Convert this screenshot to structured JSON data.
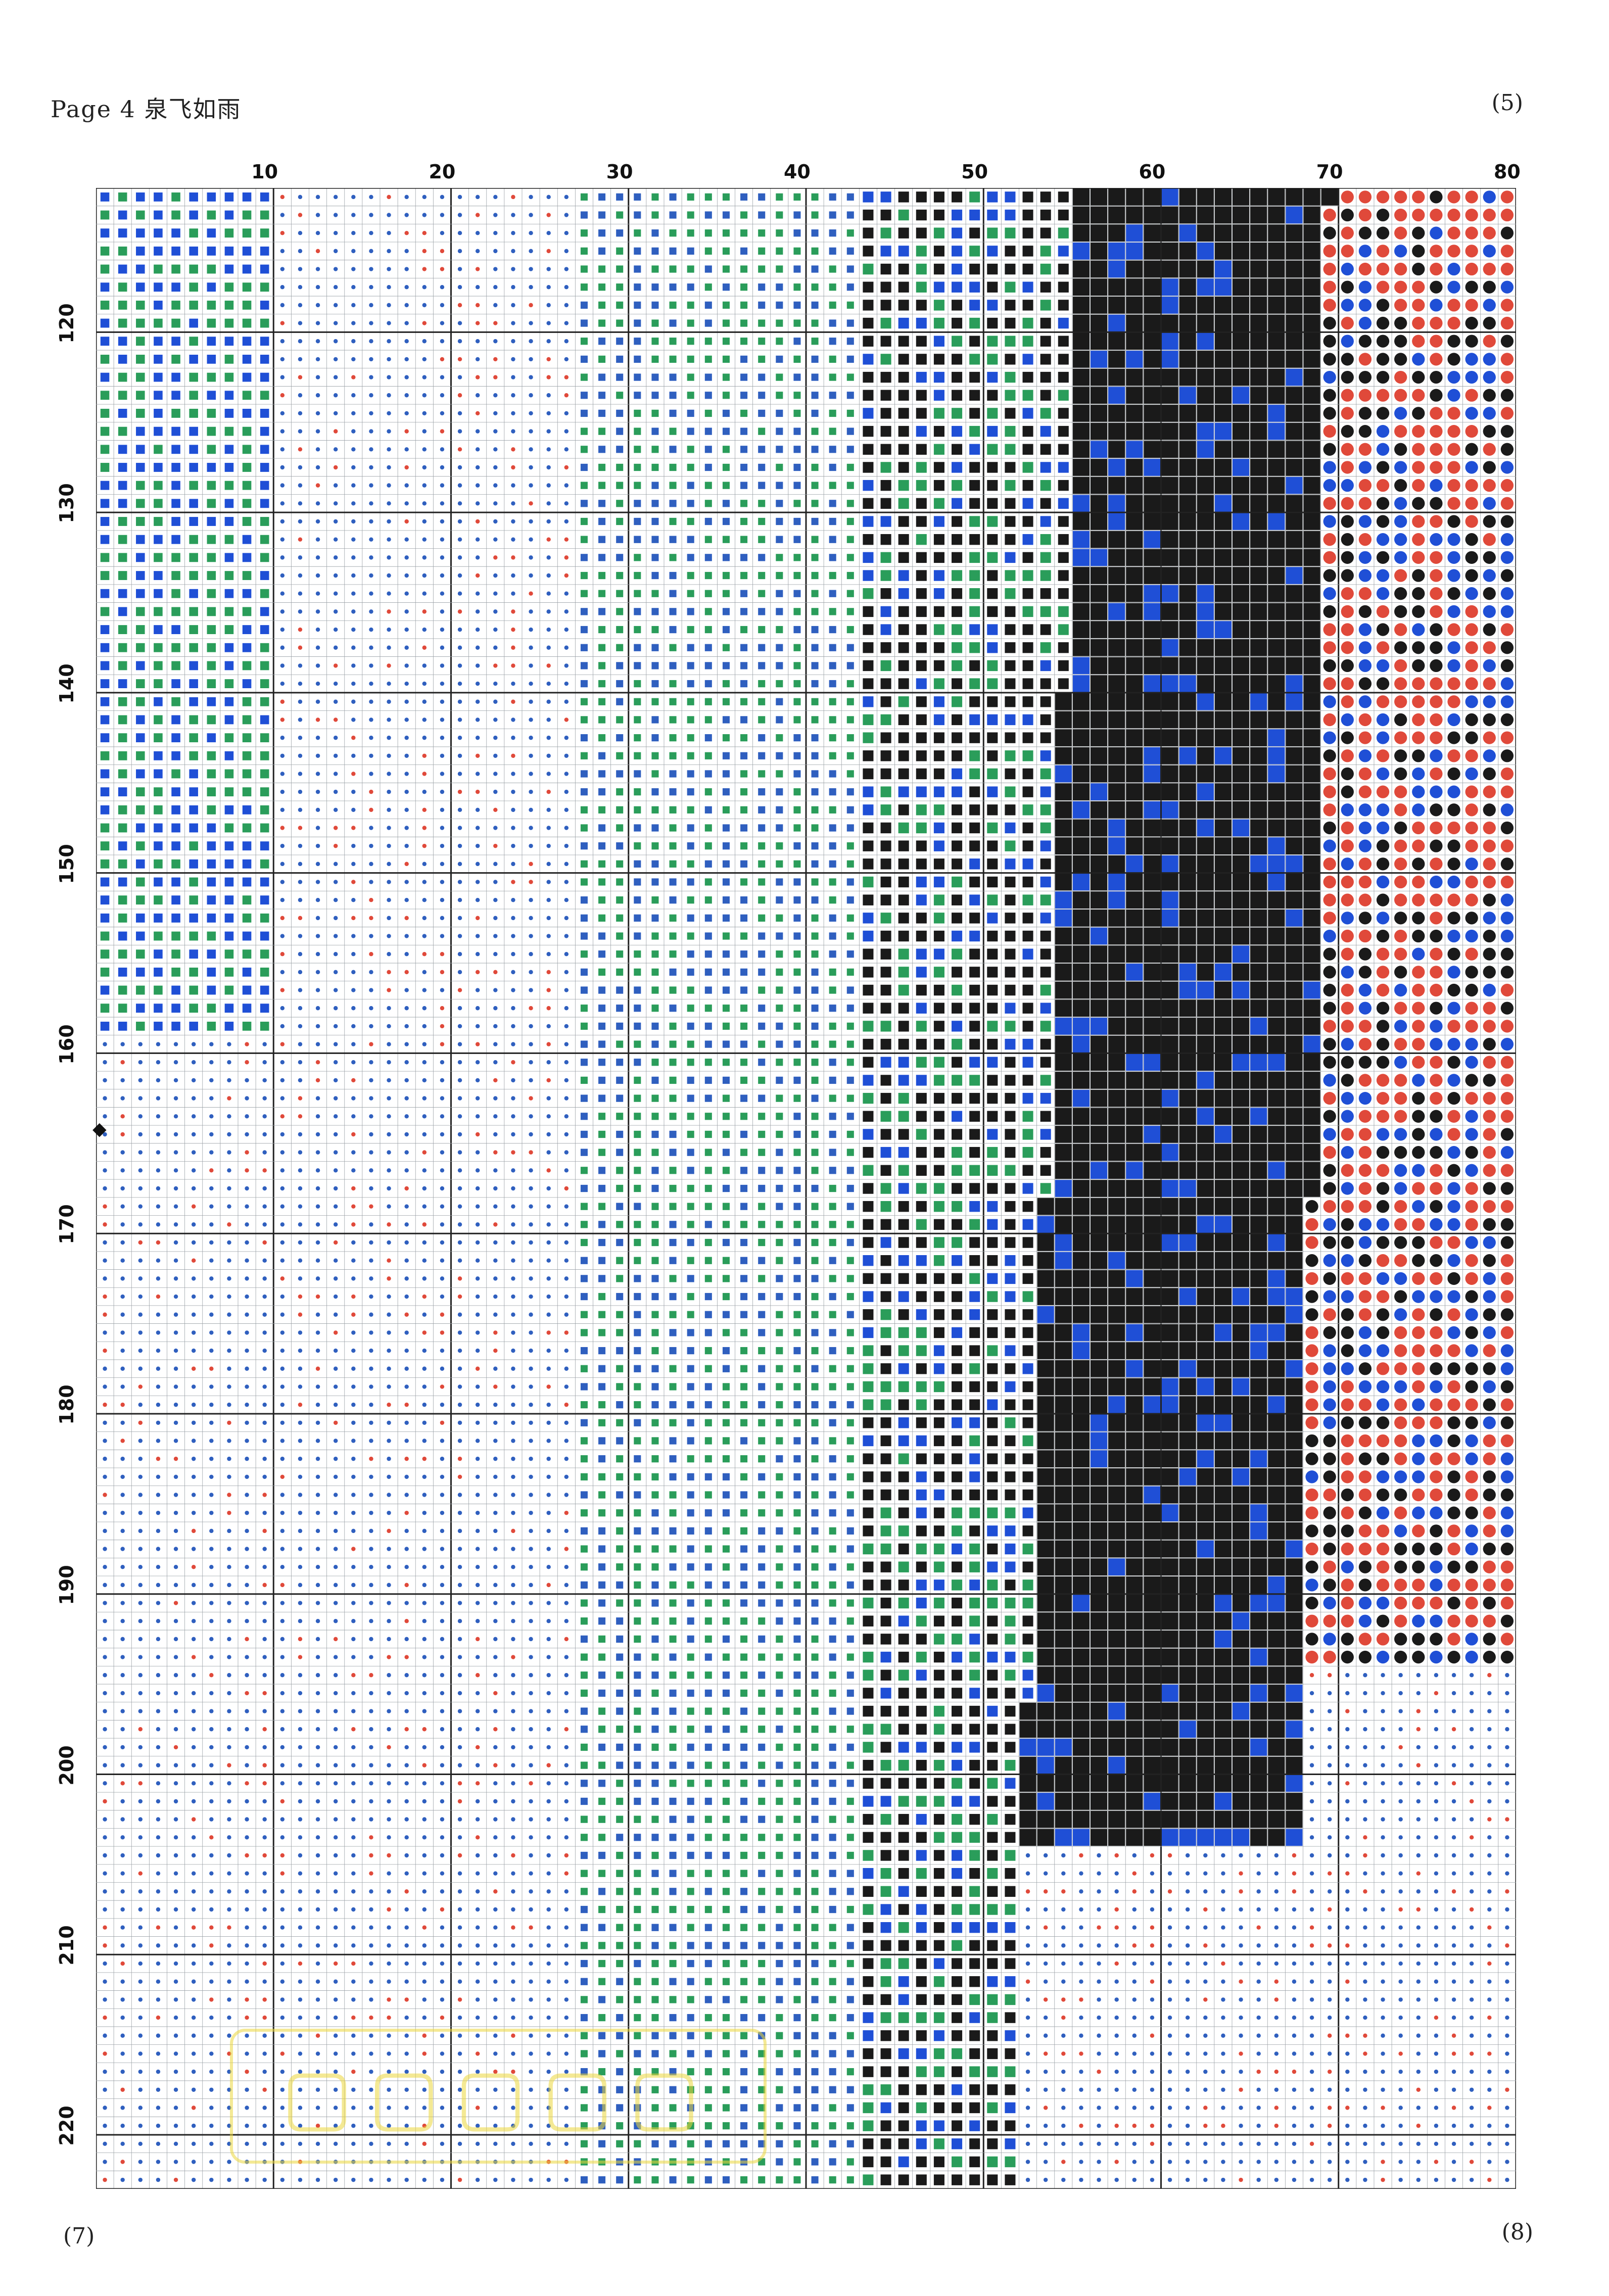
{
  "header": {
    "page_title": "Page 4  泉飞如雨",
    "corner_top_right": "(5)"
  },
  "footer": {
    "corner_bottom_left": "(7)",
    "corner_bottom_right": "(8)"
  },
  "chart": {
    "column_labels": [
      "10",
      "20",
      "30",
      "40",
      "50",
      "60",
      "70",
      "80"
    ],
    "row_labels": [
      "120",
      "130",
      "140",
      "150",
      "160",
      "170",
      "180",
      "190",
      "200",
      "210",
      "220"
    ],
    "first_column": 1,
    "last_column": 80,
    "first_row": 113,
    "last_row": 223,
    "colors": {
      "light_blue_sym": "#2f5fbf",
      "green_sym": "#2a9d5a",
      "black_fill": "#1a1a1a",
      "red_sym": "#e0493a",
      "blue_sym": "#1f4fd6",
      "grid": "#9aa0a6",
      "grid_major": "#222222"
    }
  }
}
